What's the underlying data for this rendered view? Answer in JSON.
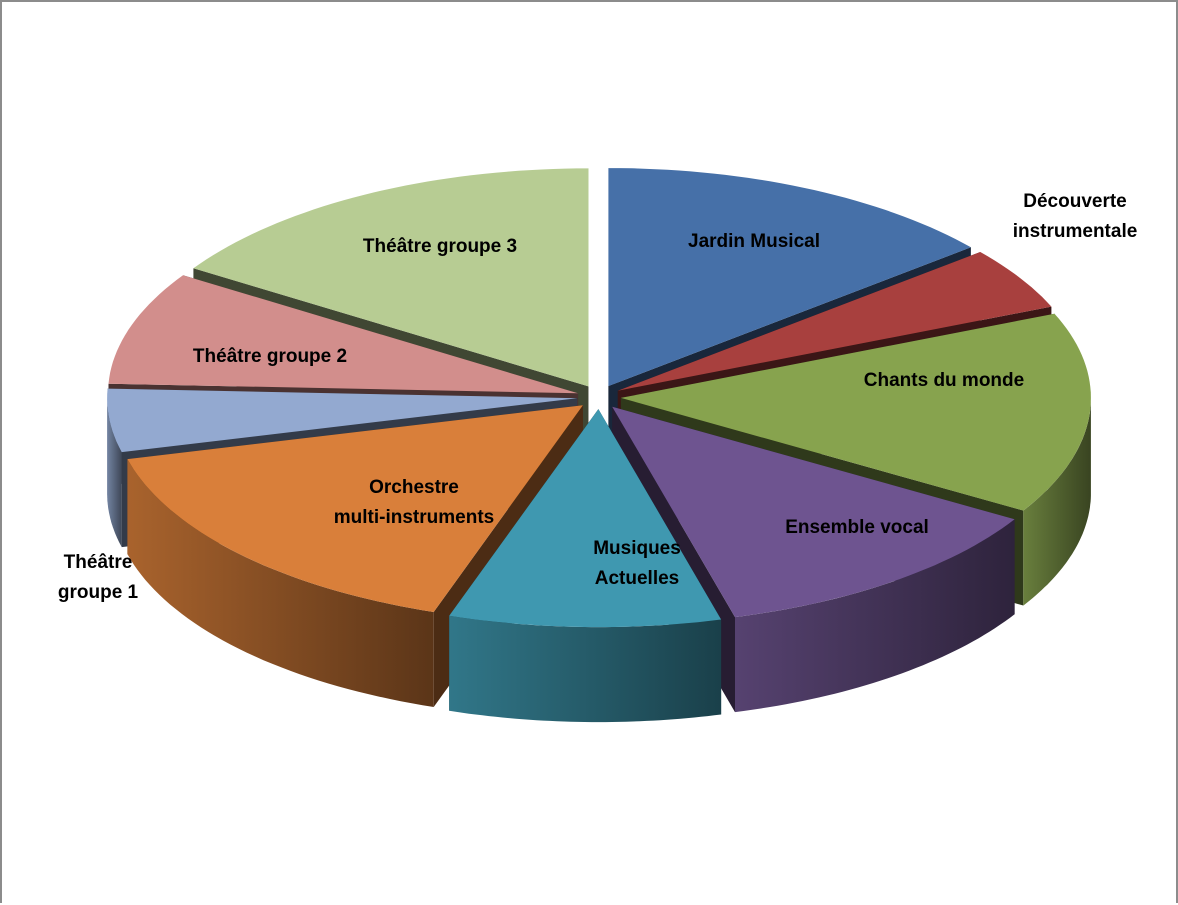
{
  "chart_data": {
    "type": "pie",
    "style": "3d-exploded",
    "title": "",
    "slices": [
      {
        "label": "Jardin Musical",
        "label_lines": [
          "Jardin Musical"
        ],
        "value": 15,
        "color": "#4670A8"
      },
      {
        "label": "Découverte instrumentale",
        "label_lines": [
          "Découverte",
          "instrumentale"
        ],
        "value": 5,
        "color": "#A8403E"
      },
      {
        "label": "Chants du monde",
        "label_lines": [
          "Chants du monde"
        ],
        "value": 16,
        "color": "#87A34E"
      },
      {
        "label": "Ensemble vocal",
        "label_lines": [
          "Ensemble vocal"
        ],
        "value": 13,
        "color": "#6E5490"
      },
      {
        "label": "Musiques Actuelles",
        "label_lines": [
          "Musiques",
          "Actuelles"
        ],
        "value": 10,
        "color": "#3F98B0"
      },
      {
        "label": "Orchestre multi-instruments",
        "label_lines": [
          "Orchestre",
          "multi-instruments"
        ],
        "value": 17,
        "color": "#D97F3A"
      },
      {
        "label": "Théâtre groupe 1",
        "label_lines": [
          "Théâtre",
          "groupe 1"
        ],
        "value": 5,
        "color": "#93A9D0"
      },
      {
        "label": "Théâtre groupe 2",
        "label_lines": [
          "Théâtre groupe 2"
        ],
        "value": 9,
        "color": "#D28E8C"
      },
      {
        "label": "Théâtre groupe 3",
        "label_lines": [
          "Théâtre groupe 3"
        ],
        "value": 17,
        "color": "#B7CC93"
      }
    ]
  }
}
